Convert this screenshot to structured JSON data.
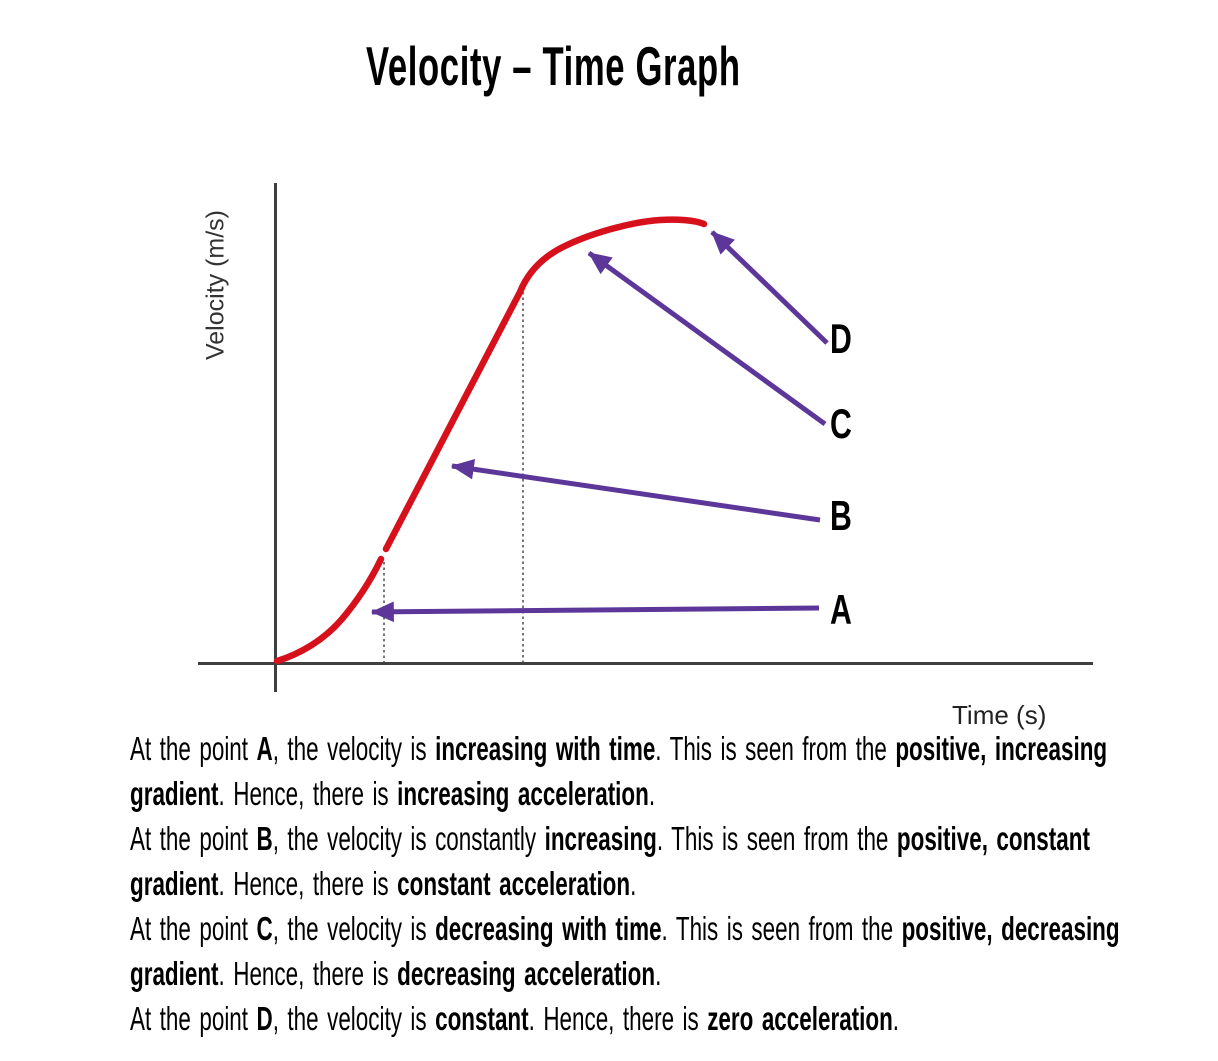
{
  "title": "Velocity – Time Graph",
  "graph": {
    "ylabel": "Velocity (m/s)",
    "xlabel": "Time (s)",
    "labels": {
      "a": "A",
      "b": "B",
      "c": "C",
      "d": "D"
    },
    "colors": {
      "curve": "#d6111c",
      "arrows": "#5c3799",
      "axes": "#3f3f3f",
      "dotted_guides": "#555555",
      "text": "#000000"
    }
  },
  "chart_data": {
    "type": "line",
    "title": "Velocity – Time Graph",
    "xlabel": "Time (s)",
    "ylabel": "Velocity (m/s)",
    "tick_labels_shown": false,
    "units": "arbitrary (sketch graph, no tick labels)",
    "grid": false,
    "legend": false,
    "series": [
      {
        "name": "velocity",
        "color": "#d6111c",
        "x": [
          0,
          0.35,
          0.6,
          0.85,
          1.05,
          1.2,
          1.3,
          1.35,
          1.9,
          2.4,
          3.0,
          3.3,
          3.55,
          3.95,
          4.45,
          4.75,
          5.25
        ],
        "y": [
          0,
          0.25,
          0.55,
          0.95,
          1.45,
          1.9,
          2.15,
          2.4,
          4.15,
          5.75,
          7.75,
          8.45,
          8.7,
          9.0,
          9.2,
          9.25,
          9.15
        ]
      }
    ],
    "dotted_guide_lines_at_x": [
      1.3,
      3.0
    ],
    "annotations": [
      {
        "label": "A",
        "arrow_points_to_xy": [
          1.15,
          1.05
        ]
      },
      {
        "label": "B",
        "arrow_points_to_xy": [
          2.2,
          4.1
        ]
      },
      {
        "label": "C",
        "arrow_points_to_xy": [
          3.85,
          8.55
        ]
      },
      {
        "label": "D",
        "arrow_points_to_xy": [
          5.3,
          9.0
        ]
      }
    ]
  },
  "explanations": [
    {
      "name": "point-a",
      "segments": [
        {
          "t": "At the point ",
          "b": false
        },
        {
          "t": "A",
          "b": true
        },
        {
          "t": ", the velocity is ",
          "b": false
        },
        {
          "t": "increasing with time",
          "b": true
        },
        {
          "t": ". This is seen from the ",
          "b": false
        },
        {
          "t": "positive, increasing gradient",
          "b": true
        },
        {
          "t": ". Hence, there is ",
          "b": false
        },
        {
          "t": "increasing acceleration",
          "b": true
        },
        {
          "t": ".",
          "b": false
        }
      ]
    },
    {
      "name": "point-b",
      "segments": [
        {
          "t": "At the point ",
          "b": false
        },
        {
          "t": "B",
          "b": true
        },
        {
          "t": ", the velocity is constantly ",
          "b": false
        },
        {
          "t": "increasing",
          "b": true
        },
        {
          "t": ". This is seen from the ",
          "b": false
        },
        {
          "t": "positive, constant gradient",
          "b": true
        },
        {
          "t": ". Hence, there is ",
          "b": false
        },
        {
          "t": "constant acceleration",
          "b": true
        },
        {
          "t": ".",
          "b": false
        }
      ]
    },
    {
      "name": "point-c",
      "segments": [
        {
          "t": "At the point ",
          "b": false
        },
        {
          "t": "C",
          "b": true
        },
        {
          "t": ", the velocity is ",
          "b": false
        },
        {
          "t": "decreasing with time",
          "b": true
        },
        {
          "t": ". This is seen from the ",
          "b": false
        },
        {
          "t": "positive, decreasing gradient",
          "b": true
        },
        {
          "t": ". Hence, there is ",
          "b": false
        },
        {
          "t": "decreasing acceleration",
          "b": true
        },
        {
          "t": ".",
          "b": false
        }
      ]
    },
    {
      "name": "point-d",
      "segments": [
        {
          "t": "At the point ",
          "b": false
        },
        {
          "t": "D",
          "b": true
        },
        {
          "t": ", the velocity is ",
          "b": false
        },
        {
          "t": "constant",
          "b": true
        },
        {
          "t": ". Hence, there is ",
          "b": false
        },
        {
          "t": "zero acceleration",
          "b": true
        },
        {
          "t": ".",
          "b": false
        }
      ]
    }
  ]
}
